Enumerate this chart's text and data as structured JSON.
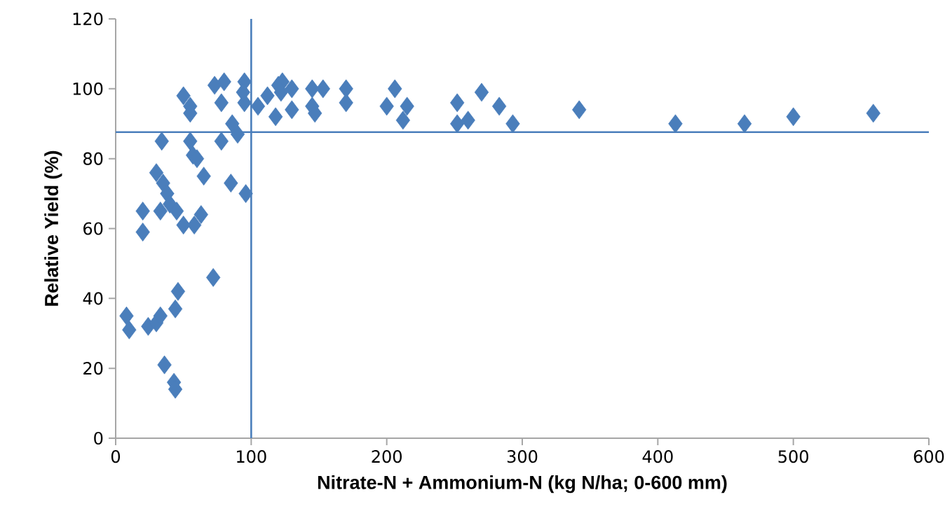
{
  "chart_data": {
    "type": "scatter",
    "xlabel": "Nitrate-N + Ammonium-N (kg N/ha; 0-600 mm)",
    "ylabel": "Relative Yield (%)",
    "x": [
      8,
      10,
      24,
      30,
      33,
      36,
      43,
      44,
      44,
      46,
      72,
      20,
      20,
      34,
      30,
      35,
      33,
      38,
      40,
      45,
      50,
      58,
      57,
      55,
      63,
      65,
      60,
      85,
      96,
      78,
      86,
      90,
      50,
      55,
      55,
      73,
      80,
      78,
      95,
      95,
      94,
      105,
      112,
      118,
      120,
      123,
      122,
      130,
      130,
      145,
      145,
      147,
      153,
      170,
      170,
      200,
      206,
      212,
      215,
      252,
      252,
      260,
      270,
      283,
      293,
      342,
      413,
      464,
      500,
      559
    ],
    "values": [
      35,
      31,
      32,
      33,
      35,
      21,
      16,
      14,
      37,
      42,
      46,
      65,
      59,
      85,
      76,
      73,
      65,
      70,
      67,
      65,
      61,
      61,
      81,
      85,
      64,
      75,
      80,
      73,
      70,
      85,
      90,
      87,
      98,
      95,
      93,
      101,
      102,
      96,
      102,
      96,
      99,
      95,
      98,
      92,
      101,
      102,
      99,
      100,
      94,
      100,
      95,
      93,
      100,
      100,
      96,
      95,
      100,
      91,
      95,
      96,
      90,
      91,
      99,
      95,
      90,
      94,
      90,
      90,
      92,
      93
    ],
    "color": "#4a7ebb",
    "marker": "diamond",
    "xlim": [
      0,
      600
    ],
    "ylim": [
      0,
      120
    ],
    "xticks": [
      0,
      100,
      200,
      300,
      400,
      500,
      600
    ],
    "yticks": [
      0,
      20,
      40,
      60,
      80,
      100,
      120
    ],
    "grid": false,
    "ref_lines": [
      {
        "axis": "x",
        "value": 100,
        "color": "#4a7ebb"
      },
      {
        "axis": "y",
        "value": 87.6,
        "color": "#4a7ebb"
      }
    ]
  }
}
